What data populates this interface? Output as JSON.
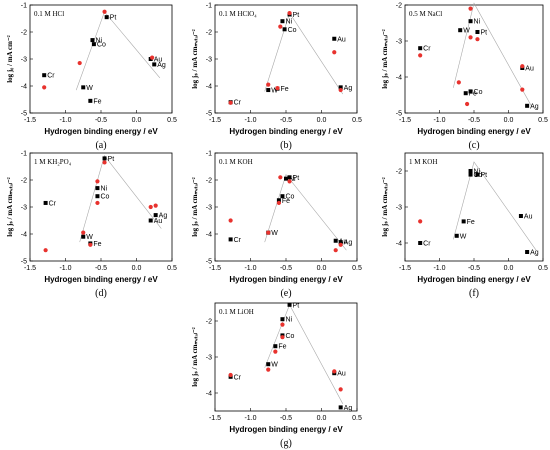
{
  "chart_data": [
    {
      "type": "scatter",
      "label": "(a)",
      "title": "0.1 M HCl",
      "ylabel": "log j₀ / mA cm⁻²",
      "xlabel": "Hydrogen binding energy / eV",
      "xlim": [
        -1.5,
        0.5
      ],
      "ylim": [
        -5,
        -1
      ],
      "xticks": [
        "-1.5",
        "-1.0",
        "-0.5",
        "0.0",
        "0.5"
      ],
      "yticks": [
        "-5",
        "-4",
        "-3",
        "-2",
        "-1"
      ],
      "series": [
        {
          "color": "#000000",
          "points": [
            {
              "label": "Cr",
              "x": -1.3,
              "y": -3.6
            },
            {
              "label": "W",
              "x": -0.75,
              "y": -4.05
            },
            {
              "label": "Fe",
              "x": -0.65,
              "y": -4.55
            },
            {
              "label": "Ni",
              "x": -0.62,
              "y": -2.3
            },
            {
              "label": "Co",
              "x": -0.6,
              "y": -2.45
            },
            {
              "label": "Pt",
              "x": -0.42,
              "y": -1.45
            },
            {
              "label": "Au",
              "x": 0.2,
              "y": -3.0
            },
            {
              "label": "Ag",
              "x": 0.25,
              "y": -3.2
            }
          ]
        },
        {
          "color": "#e8322e",
          "points": [
            {
              "x": -1.3,
              "y": -4.05
            },
            {
              "x": -0.8,
              "y": -3.15
            },
            {
              "x": -0.45,
              "y": -1.25
            },
            {
              "x": 0.22,
              "y": -2.95
            }
          ]
        }
      ],
      "guide": [
        [
          -0.85,
          -4.15
        ],
        [
          -0.45,
          -1.25
        ],
        [
          0.33,
          -3.7
        ]
      ]
    },
    {
      "type": "scatter",
      "label": "(b)",
      "title": "0.1 M HClO₄",
      "ylabel": "log jₛ / mA cmₘₑₜₐₗ⁻²",
      "xlabel": "Hydrogen binding energy / eV",
      "xlim": [
        -1.5,
        0.5
      ],
      "ylim": [
        -5,
        -1
      ],
      "xticks": [
        "-1.5",
        "-1.0",
        "-0.5",
        "0.0",
        "0.5"
      ],
      "yticks": [
        "-5",
        "-4",
        "-3",
        "-2",
        "-1"
      ],
      "series": [
        {
          "color": "#000000",
          "points": [
            {
              "label": "Cr",
              "x": -1.28,
              "y": -4.6
            },
            {
              "label": "W",
              "x": -0.75,
              "y": -4.15
            },
            {
              "label": "Fe",
              "x": -0.62,
              "y": -4.1
            },
            {
              "label": "Ni",
              "x": -0.55,
              "y": -1.6
            },
            {
              "label": "Co",
              "x": -0.52,
              "y": -1.9
            },
            {
              "label": "Pt",
              "x": -0.45,
              "y": -1.35
            },
            {
              "label": "Au",
              "x": 0.18,
              "y": -2.25
            },
            {
              "label": "Ag",
              "x": 0.27,
              "y": -4.05
            }
          ]
        },
        {
          "color": "#e8322e",
          "points": [
            {
              "x": -1.28,
              "y": -4.62
            },
            {
              "x": -0.75,
              "y": -3.95
            },
            {
              "x": -0.62,
              "y": -4.08
            },
            {
              "x": -0.58,
              "y": -1.8
            },
            {
              "x": -0.45,
              "y": -1.3
            },
            {
              "x": 0.18,
              "y": -2.75
            },
            {
              "x": 0.27,
              "y": -4.15
            }
          ]
        }
      ],
      "guide": [
        [
          -0.8,
          -4.2
        ],
        [
          -0.45,
          -1.3
        ],
        [
          0.3,
          -4.3
        ]
      ]
    },
    {
      "type": "scatter",
      "label": "(c)",
      "title": "0.5 M NaCl",
      "ylabel": "log jₛ / mA cmₘₑₜₐₗ⁻²",
      "xlabel": "Hydrogen binding energy / eV",
      "xlim": [
        -1.5,
        0.5
      ],
      "ylim": [
        -5,
        -2
      ],
      "xticks": [
        "-1.5",
        "-1.0",
        "-0.5",
        "0.0",
        "0.5"
      ],
      "yticks": [
        "-5",
        "-4",
        "-3",
        "-2"
      ],
      "series": [
        {
          "color": "#000000",
          "points": [
            {
              "label": "Cr",
              "x": -1.28,
              "y": -3.2
            },
            {
              "label": "W",
              "x": -0.7,
              "y": -2.7
            },
            {
              "label": "Ni",
              "x": -0.55,
              "y": -2.45
            },
            {
              "label": "Pt",
              "x": -0.45,
              "y": -2.75
            },
            {
              "label": "Co",
              "x": -0.55,
              "y": -4.4
            },
            {
              "label": "Fe",
              "x": -0.62,
              "y": -4.45
            },
            {
              "label": "Au",
              "x": 0.2,
              "y": -3.75
            },
            {
              "label": "Ag",
              "x": 0.27,
              "y": -4.8
            }
          ]
        },
        {
          "color": "#e8322e",
          "points": [
            {
              "x": -1.28,
              "y": -3.4
            },
            {
              "x": -0.55,
              "y": -2.1
            },
            {
              "x": -0.55,
              "y": -2.9
            },
            {
              "x": -0.45,
              "y": -2.95
            },
            {
              "x": -0.72,
              "y": -4.15
            },
            {
              "x": -0.6,
              "y": -4.75
            },
            {
              "x": 0.2,
              "y": -3.7
            },
            {
              "x": 0.2,
              "y": -4.35
            }
          ]
        }
      ],
      "guide": [
        [
          -0.8,
          -4.3
        ],
        [
          -0.5,
          -1.95
        ],
        [
          0.33,
          -4.8
        ]
      ]
    },
    {
      "type": "scatter",
      "label": "(d)",
      "title": "1 M KH₂PO₄",
      "ylabel": "log jₛ / mA cmₘₑₜₐₗ⁻²",
      "xlabel": "Hydrogen binding energy / eV",
      "xlim": [
        -1.5,
        0.5
      ],
      "ylim": [
        -5,
        -1
      ],
      "xticks": [
        "-1.5",
        "-1.0",
        "-0.5",
        "0.0",
        "0.5"
      ],
      "yticks": [
        "-5",
        "-4",
        "-3",
        "-2",
        "-1"
      ],
      "series": [
        {
          "color": "#000000",
          "points": [
            {
              "label": "Cr",
              "x": -1.28,
              "y": -2.85
            },
            {
              "label": "W",
              "x": -0.75,
              "y": -4.1
            },
            {
              "label": "Fe",
              "x": -0.65,
              "y": -4.35
            },
            {
              "label": "Ni",
              "x": -0.55,
              "y": -2.3
            },
            {
              "label": "Co",
              "x": -0.55,
              "y": -2.6
            },
            {
              "label": "Pt",
              "x": -0.45,
              "y": -1.2
            },
            {
              "label": "Au",
              "x": 0.2,
              "y": -3.5
            },
            {
              "label": "Ag",
              "x": 0.27,
              "y": -3.3
            }
          ]
        },
        {
          "color": "#e8322e",
          "points": [
            {
              "x": -1.28,
              "y": -4.6
            },
            {
              "x": -0.75,
              "y": -3.95
            },
            {
              "x": -0.65,
              "y": -4.4
            },
            {
              "x": -0.55,
              "y": -2.05
            },
            {
              "x": -0.55,
              "y": -2.85
            },
            {
              "x": -0.45,
              "y": -1.35
            },
            {
              "x": 0.2,
              "y": -3.0
            },
            {
              "x": 0.27,
              "y": -2.95
            }
          ]
        }
      ],
      "guide": [
        [
          -0.8,
          -4.3
        ],
        [
          -0.45,
          -1.1
        ],
        [
          0.35,
          -3.8
        ]
      ]
    },
    {
      "type": "scatter",
      "label": "(e)",
      "title": "0.1 M KOH",
      "ylabel": "log jₛ / mA cmₘₑₜₐₗ⁻²",
      "xlabel": "Hydrogen binding energy / eV",
      "xlim": [
        -1.5,
        0.5
      ],
      "ylim": [
        -5,
        -1
      ],
      "xticks": [
        "-1.5",
        "-1.0",
        "-0.5",
        "0.0",
        "0.5"
      ],
      "yticks": [
        "-5",
        "-4",
        "-3",
        "-2",
        "-1"
      ],
      "series": [
        {
          "color": "#000000",
          "points": [
            {
              "label": "Cr",
              "x": -1.28,
              "y": -4.2
            },
            {
              "label": "W",
              "x": -0.75,
              "y": -3.95
            },
            {
              "label": "Fe",
              "x": -0.6,
              "y": -2.75
            },
            {
              "label": "Co",
              "x": -0.55,
              "y": -2.6
            },
            {
              "label": "Ni",
              "x": -0.5,
              "y": -1.95
            },
            {
              "label": "Pt",
              "x": -0.45,
              "y": -1.9
            },
            {
              "label": "Au",
              "x": 0.2,
              "y": -4.25
            },
            {
              "label": "Ag",
              "x": 0.27,
              "y": -4.3
            }
          ]
        },
        {
          "color": "#e8322e",
          "points": [
            {
              "x": -1.28,
              "y": -3.5
            },
            {
              "x": -0.75,
              "y": -3.95
            },
            {
              "x": -0.6,
              "y": -2.85
            },
            {
              "x": -0.58,
              "y": -1.9
            },
            {
              "x": -0.45,
              "y": -2.05
            },
            {
              "x": 0.2,
              "y": -4.6
            },
            {
              "x": 0.27,
              "y": -4.4
            }
          ]
        }
      ],
      "guide": [
        [
          -0.8,
          -4.3
        ],
        [
          -0.5,
          -1.8
        ],
        [
          0.35,
          -4.6
        ]
      ]
    },
    {
      "type": "scatter",
      "label": "(f)",
      "title": "1 M KOH",
      "ylabel": "log jₛ / mA cmₘₑₜₐₗ⁻²",
      "xlabel": "Hydrogen binding energy / eV",
      "xlim": [
        -1.5,
        0.5
      ],
      "ylim": [
        -4.5,
        -1.5
      ],
      "xticks": [
        "-1.5",
        "-1.0",
        "-0.5",
        "0.0",
        "0.5"
      ],
      "yticks": [
        "-4",
        "-3",
        "-2"
      ],
      "series": [
        {
          "color": "#000000",
          "points": [
            {
              "label": "Cr",
              "x": -1.28,
              "y": -4.0
            },
            {
              "label": "W",
              "x": -0.75,
              "y": -3.8
            },
            {
              "label": "Fe",
              "x": -0.65,
              "y": -3.4
            },
            {
              "label": "Ni",
              "x": -0.55,
              "y": -2.0
            },
            {
              "label": "Co",
              "x": -0.55,
              "y": -2.1
            },
            {
              "label": "Pt",
              "x": -0.45,
              "y": -2.1
            },
            {
              "label": "Au",
              "x": 0.18,
              "y": -3.25
            },
            {
              "label": "Ag",
              "x": 0.27,
              "y": -4.25
            }
          ]
        },
        {
          "color": "#e8322e",
          "points": [
            {
              "x": -1.28,
              "y": -3.4
            }
          ]
        }
      ],
      "guide": [
        [
          -0.8,
          -3.9
        ],
        [
          -0.5,
          -1.75
        ],
        [
          0.4,
          -4.2
        ]
      ]
    },
    {
      "type": "scatter",
      "label": "(g)",
      "title": "0.1 M LiOH",
      "ylabel": "log jₛ / mA cmₘₑₜₐₗ⁻²",
      "xlabel": "Hydrogen binding energy / eV",
      "xlim": [
        -1.5,
        0.5
      ],
      "ylim": [
        -4.5,
        -1.5
      ],
      "xticks": [
        "-1.5",
        "-1.0",
        "-0.5",
        "0.0",
        "0.5"
      ],
      "yticks": [
        "-4",
        "-3",
        "-2"
      ],
      "series": [
        {
          "color": "#000000",
          "points": [
            {
              "label": "Cr",
              "x": -1.28,
              "y": -3.55
            },
            {
              "label": "W",
              "x": -0.75,
              "y": -3.2
            },
            {
              "label": "Fe",
              "x": -0.65,
              "y": -2.7
            },
            {
              "label": "Co",
              "x": -0.55,
              "y": -2.4
            },
            {
              "label": "Ni",
              "x": -0.55,
              "y": -1.95
            },
            {
              "label": "Pt",
              "x": -0.45,
              "y": -1.55
            },
            {
              "label": "Au",
              "x": 0.18,
              "y": -3.45
            },
            {
              "label": "Ag",
              "x": 0.27,
              "y": -4.4
            }
          ]
        },
        {
          "color": "#e8322e",
          "points": [
            {
              "x": -1.28,
              "y": -3.5
            },
            {
              "x": -0.75,
              "y": -3.35
            },
            {
              "x": -0.65,
              "y": -2.85
            },
            {
              "x": -0.55,
              "y": -2.45
            },
            {
              "x": -0.55,
              "y": -2.1
            },
            {
              "x": 0.18,
              "y": -3.4
            },
            {
              "x": 0.27,
              "y": -3.9
            }
          ]
        }
      ],
      "guide": [
        [
          -0.8,
          -3.3
        ],
        [
          -0.45,
          -1.55
        ],
        [
          0.3,
          -4.3
        ]
      ]
    }
  ]
}
